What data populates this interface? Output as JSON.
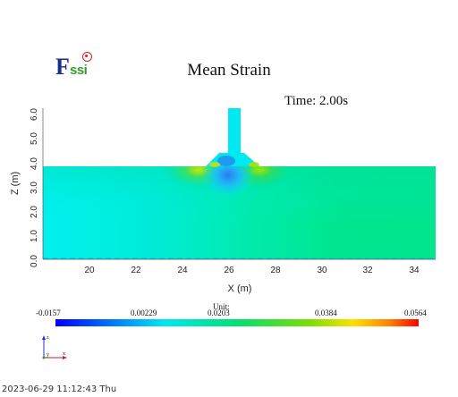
{
  "title": "Mean Strain",
  "time_label": "Time: 2.00s",
  "timestamp": "2023-06-29 11:12:43 Thu",
  "logo": {
    "text_main": "F",
    "text_sub": "ssi"
  },
  "plot": {
    "xlabel": "X (m)",
    "ylabel": "Z (m)",
    "x_ticks": [
      "20",
      "22",
      "24",
      "26",
      "28",
      "30",
      "32",
      "34"
    ],
    "y_ticks": [
      "0.0",
      "1.0",
      "2.0",
      "3.0",
      "4.0",
      "5.0",
      "6.0"
    ]
  },
  "colorbar": {
    "unit": "Unit:",
    "labels": [
      "-0.0157",
      "0.00229",
      "0.0203",
      "0.0384",
      "0.0564"
    ],
    "colors": [
      "#0000ff",
      "#00c8ff",
      "#00e080",
      "#ffe000",
      "#ff0000"
    ]
  },
  "triad": {
    "z": "z",
    "x": "x",
    "y": "y"
  }
}
